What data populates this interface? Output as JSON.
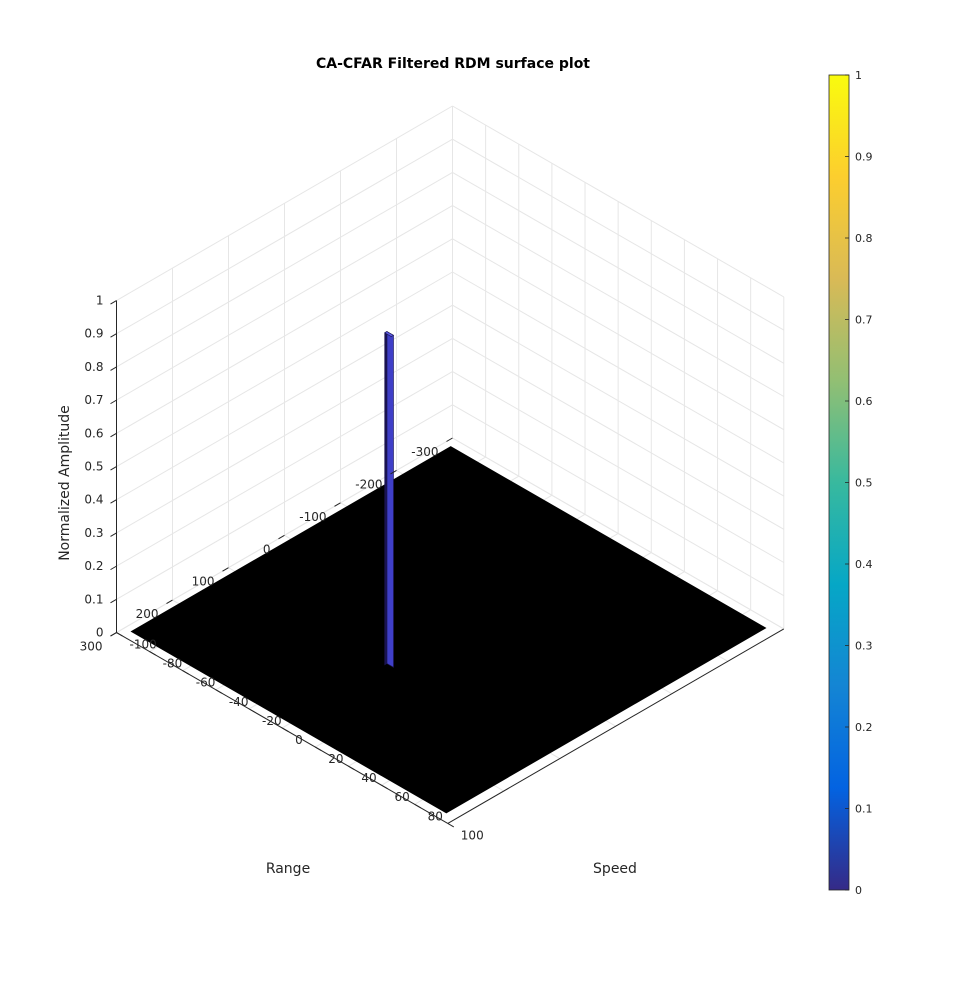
{
  "chart_data": {
    "type": "surface",
    "title": "CA-CFAR Filtered RDM surface plot",
    "xlabel": "Speed",
    "ylabel": "Range",
    "zlabel": "Normalized Amplitude",
    "xlim": [
      -100,
      100
    ],
    "ylim": [
      -300,
      300
    ],
    "zlim": [
      0,
      1
    ],
    "x_ticks": [
      -100,
      -80,
      -60,
      -40,
      -20,
      0,
      20,
      40,
      60,
      80,
      100
    ],
    "y_ticks": [
      -300,
      -200,
      -100,
      0,
      100,
      200,
      300
    ],
    "z_ticks": [
      0,
      0.1,
      0.2,
      0.3,
      0.4,
      0.5,
      0.6,
      0.7,
      0.8,
      0.9,
      1
    ],
    "grid": true,
    "colormap": "parula",
    "colorbar": {
      "limits": [
        0,
        1
      ],
      "ticks": [
        0,
        0.1,
        0.2,
        0.3,
        0.4,
        0.5,
        0.6,
        0.7,
        0.8,
        0.9,
        1
      ]
    },
    "surface": {
      "base_value": 0,
      "base_color": "#000000",
      "detections": [
        {
          "speed_range": [
            -2,
            2
          ],
          "range_range": [
            107,
            111
          ],
          "value": 1
        }
      ]
    }
  },
  "colors": {
    "grid": "#e6e6e6",
    "axis": "#262626",
    "peak_fill": "#3f3fc8",
    "peak_edge": "#1a1450",
    "parula_stops": [
      "#352a87",
      "#0363e1",
      "#1485d4",
      "#06a7c6",
      "#38b99e",
      "#92bf73",
      "#d9ba56",
      "#fcce2e",
      "#f9fb0e"
    ]
  }
}
